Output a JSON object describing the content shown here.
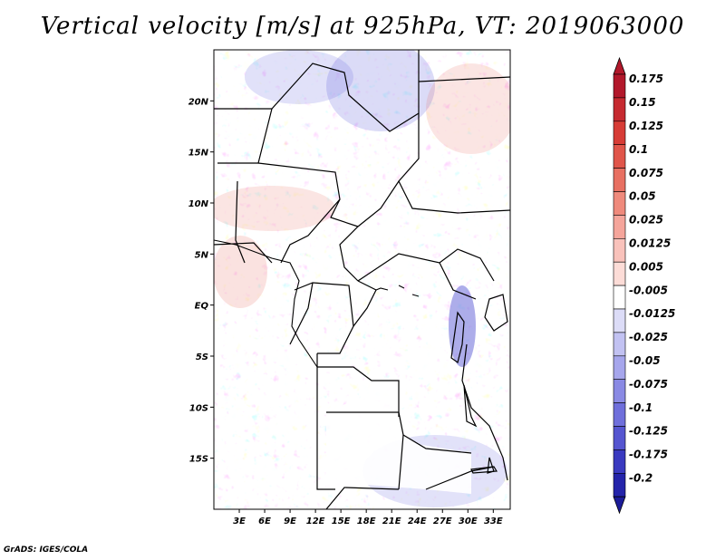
{
  "title": "Vertical velocity [m/s] at 925hPa, VT: 2019063000",
  "credit": "GrADS: IGES/COLA",
  "map": {
    "lon_range": [
      0,
      35
    ],
    "lat_range": [
      -20,
      25
    ],
    "lon_ticks": [
      {
        "value": 3,
        "label": "3E"
      },
      {
        "value": 6,
        "label": "6E"
      },
      {
        "value": 9,
        "label": "9E"
      },
      {
        "value": 12,
        "label": "12E"
      },
      {
        "value": 15,
        "label": "15E"
      },
      {
        "value": 18,
        "label": "18E"
      },
      {
        "value": 21,
        "label": "21E"
      },
      {
        "value": 24,
        "label": "24E"
      },
      {
        "value": 27,
        "label": "27E"
      },
      {
        "value": 30,
        "label": "30E"
      },
      {
        "value": 33,
        "label": "33E"
      }
    ],
    "lat_ticks": [
      {
        "value": 20,
        "label": "20N"
      },
      {
        "value": 15,
        "label": "15N"
      },
      {
        "value": 10,
        "label": "10N"
      },
      {
        "value": 5,
        "label": "5N"
      },
      {
        "value": 0,
        "label": "EQ"
      },
      {
        "value": -5,
        "label": "5S"
      },
      {
        "value": -10,
        "label": "10S"
      },
      {
        "value": -15,
        "label": "15S"
      }
    ]
  },
  "colorbar": {
    "levels": [
      {
        "label": "0.175",
        "color": "#b2182b"
      },
      {
        "label": "0.15",
        "color": "#c62a30"
      },
      {
        "label": "0.125",
        "color": "#d73c36"
      },
      {
        "label": "0.1",
        "color": "#e0554a"
      },
      {
        "label": "0.075",
        "color": "#e87062"
      },
      {
        "label": "0.05",
        "color": "#ef8a7c"
      },
      {
        "label": "0.025",
        "color": "#f5a59b"
      },
      {
        "label": "0.0125",
        "color": "#f9c2bb"
      },
      {
        "label": "0.005",
        "color": "#fcdcd7"
      },
      {
        "label": "-0.005",
        "color": "#ffffff"
      },
      {
        "label": "-0.0125",
        "color": "#dcdcf7"
      },
      {
        "label": "-0.025",
        "color": "#c2c2f2"
      },
      {
        "label": "-0.05",
        "color": "#a6a6ec"
      },
      {
        "label": "-0.075",
        "color": "#8a8ae4"
      },
      {
        "label": "-0.1",
        "color": "#6f6fdb"
      },
      {
        "label": "-0.125",
        "color": "#5555d0"
      },
      {
        "label": "-0.175",
        "color": "#3a3ac0"
      },
      {
        "label": "-0.2",
        "color": "#2424aa"
      }
    ],
    "top_arrow_color": "#b2182b",
    "bottom_arrow_color": "#1c1c99"
  }
}
